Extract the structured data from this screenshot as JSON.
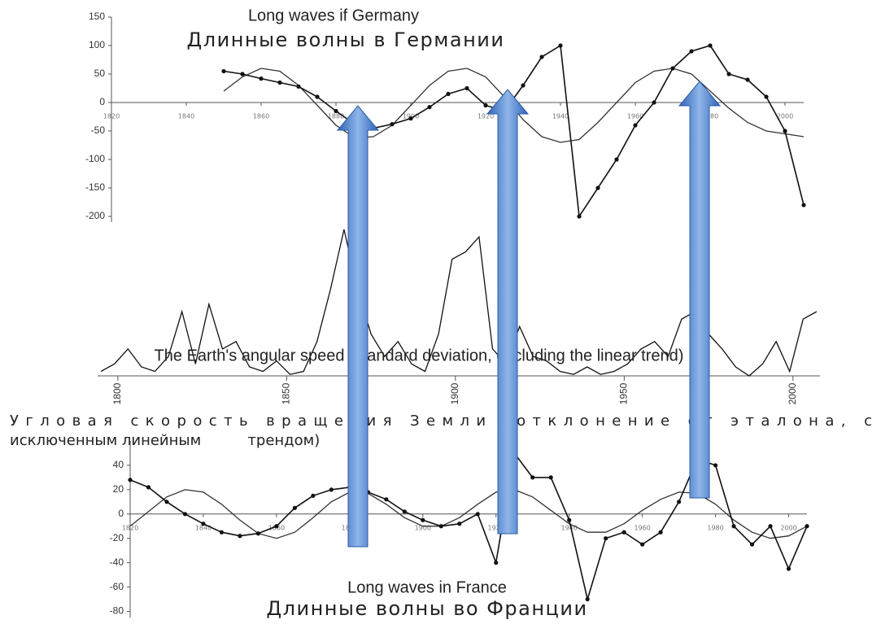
{
  "chart_data": [
    {
      "type": "line",
      "title": "Long waves if Germany",
      "subtitle": "Длинные волны в Германии",
      "x": [
        1850,
        1855,
        1860,
        1865,
        1870,
        1875,
        1880,
        1885,
        1890,
        1895,
        1900,
        1905,
        1910,
        1915,
        1920,
        1925,
        1930,
        1935,
        1940,
        1945,
        1950,
        1955,
        1960,
        1965,
        1970,
        1975,
        1980,
        1985,
        1990,
        1995,
        2000,
        2005
      ],
      "series": [
        {
          "color": "#333333",
          "values": [
            20,
            45,
            60,
            55,
            30,
            -5,
            -40,
            -62,
            -60,
            -40,
            -5,
            30,
            55,
            60,
            45,
            10,
            -30,
            -60,
            -70,
            -65,
            -35,
            0,
            35,
            55,
            60,
            50,
            20,
            -10,
            -35,
            -50,
            -55,
            -60
          ]
        },
        {
          "color": "#111111",
          "markers": true,
          "values": [
            55,
            50,
            42,
            35,
            28,
            10,
            -15,
            -38,
            -45,
            -38,
            -28,
            -8,
            15,
            25,
            -5,
            -15,
            30,
            80,
            100,
            -200,
            -150,
            -100,
            -40,
            0,
            60,
            90,
            100,
            50,
            40,
            10,
            -50,
            -180
          ]
        }
      ],
      "xlim": [
        1820,
        2005
      ],
      "xticks": [
        1820,
        1840,
        1860,
        1880,
        1900,
        1920,
        1940,
        1960,
        1980,
        2000
      ],
      "ylim": [
        -210,
        150
      ],
      "yticks": [
        150,
        100,
        50,
        0,
        -50,
        -100,
        -150,
        -200
      ]
    },
    {
      "type": "line",
      "title": "The Earth's angular speed (standard deviation, excluding the linear trend)",
      "subtitle": [
        "Угловая скорость вращения     Земли          (отклонение       от  эталона, с",
        "исключенным линейным          трендом)"
      ],
      "x": [
        1795,
        1799,
        1803,
        1807,
        1811,
        1815,
        1819,
        1823,
        1827,
        1831,
        1835,
        1839,
        1843,
        1847,
        1851,
        1855,
        1859,
        1863,
        1867,
        1871,
        1875,
        1879,
        1883,
        1887,
        1891,
        1895,
        1899,
        1903,
        1907,
        1911,
        1915,
        1919,
        1923,
        1927,
        1931,
        1935,
        1939,
        1943,
        1947,
        1951,
        1955,
        1959,
        1963,
        1967,
        1971,
        1975,
        1979,
        1983,
        1987,
        1991,
        1995,
        1999,
        2003,
        2007
      ],
      "series": [
        {
          "color": "#111111",
          "values": [
            5,
            10,
            20,
            8,
            5,
            15,
            45,
            10,
            50,
            20,
            25,
            8,
            5,
            12,
            3,
            5,
            25,
            60,
            100,
            60,
            30,
            15,
            25,
            10,
            5,
            30,
            80,
            85,
            95,
            20,
            10,
            35,
            15,
            12,
            5,
            3,
            8,
            3,
            5,
            10,
            20,
            25,
            15,
            40,
            45,
            30,
            20,
            8,
            2,
            10,
            25,
            5,
            40,
            45
          ]
        }
      ],
      "xlim": [
        1794,
        2008
      ],
      "xticks": [
        1800,
        1850,
        1900,
        1950,
        2000
      ]
    },
    {
      "type": "line",
      "title": "Long waves in France",
      "subtitle": "Длинные волны во Франции",
      "x": [
        1820,
        1825,
        1830,
        1835,
        1840,
        1845,
        1850,
        1855,
        1860,
        1865,
        1870,
        1875,
        1880,
        1885,
        1890,
        1895,
        1900,
        1905,
        1910,
        1915,
        1920,
        1925,
        1930,
        1935,
        1940,
        1945,
        1950,
        1955,
        1960,
        1965,
        1970,
        1975,
        1980,
        1985,
        1990,
        1995,
        2000,
        2005
      ],
      "series": [
        {
          "color": "#333333",
          "values": [
            -10,
            2,
            14,
            20,
            18,
            8,
            -5,
            -16,
            -20,
            -15,
            -3,
            10,
            18,
            17,
            8,
            -3,
            -10,
            -10,
            -3,
            8,
            18,
            20,
            14,
            3,
            -8,
            -15,
            -15,
            -8,
            3,
            12,
            18,
            17,
            8,
            -5,
            -15,
            -20,
            -18,
            -10
          ]
        },
        {
          "color": "#111111",
          "markers": true,
          "values": [
            28,
            22,
            10,
            0,
            -8,
            -15,
            -18,
            -16,
            -10,
            5,
            15,
            20,
            22,
            18,
            12,
            2,
            -5,
            -10,
            -8,
            0,
            -40,
            50,
            30,
            30,
            -5,
            -70,
            -20,
            -15,
            -25,
            -15,
            10,
            45,
            40,
            -10,
            -25,
            -10,
            -45,
            -10
          ]
        }
      ],
      "xlim": [
        1820,
        2005
      ],
      "xticks": [
        1820,
        1840,
        1860,
        1880,
        1900,
        1920,
        1940,
        1960,
        1980,
        2000
      ],
      "ylim": [
        -85,
        60
      ],
      "yticks": [
        40,
        20,
        0,
        -20,
        -40,
        -60,
        -80
      ]
    }
  ]
}
